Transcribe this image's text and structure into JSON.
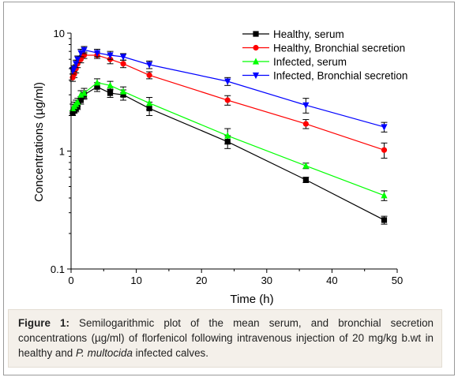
{
  "chart_data": {
    "type": "line",
    "yscale": "log",
    "xlabel": "Time (h)",
    "ylabel": "Concentrations (µg/ml)",
    "xlim": [
      0,
      50
    ],
    "ylim": [
      0.1,
      10
    ],
    "xticks": [
      "0",
      "10",
      "20",
      "30",
      "40",
      "50"
    ],
    "yticks": [
      "0.1",
      "1",
      "10"
    ],
    "legend_position": "top-right",
    "x": [
      0.25,
      0.5,
      0.75,
      1,
      1.5,
      2,
      4,
      6,
      8,
      12,
      24,
      36,
      48
    ],
    "series": [
      {
        "name": "Healthy, serum",
        "color": "#000000",
        "marker": "square",
        "values": [
          2.1,
          2.2,
          2.3,
          2.4,
          2.7,
          3.0,
          3.5,
          3.1,
          3.0,
          2.3,
          1.2,
          0.57,
          0.26
        ],
        "errors": [
          0.1,
          0.1,
          0.15,
          0.15,
          0.2,
          0.25,
          0.3,
          0.25,
          0.3,
          0.3,
          0.15,
          0.03,
          0.02
        ]
      },
      {
        "name": "Healthy, Bronchial secretion",
        "color": "#ff0000",
        "marker": "circle",
        "values": [
          4.2,
          4.5,
          5.0,
          5.5,
          6.0,
          6.5,
          6.5,
          6.0,
          5.5,
          4.4,
          2.7,
          1.7,
          1.02
        ],
        "errors": [
          0.3,
          0.3,
          0.4,
          0.4,
          0.4,
          0.4,
          0.4,
          0.5,
          0.4,
          0.3,
          0.25,
          0.15,
          0.15
        ]
      },
      {
        "name": "Infected, serum",
        "color": "#00ff00",
        "marker": "triangle-up",
        "values": [
          2.3,
          2.4,
          2.5,
          2.6,
          3.0,
          3.1,
          3.8,
          3.6,
          3.2,
          2.55,
          1.35,
          0.75,
          0.42
        ],
        "errors": [
          0.2,
          0.2,
          0.2,
          0.2,
          0.25,
          0.3,
          0.3,
          0.3,
          0.3,
          0.3,
          0.2,
          0.04,
          0.04
        ]
      },
      {
        "name": "Infected, Bronchial secretion",
        "color": "#0000ff",
        "marker": "triangle-down",
        "values": [
          4.8,
          5.0,
          5.5,
          6.0,
          6.8,
          7.2,
          6.8,
          6.5,
          6.3,
          5.4,
          3.9,
          2.45,
          1.6
        ],
        "errors": [
          0.3,
          0.3,
          0.4,
          0.4,
          0.5,
          0.5,
          0.5,
          0.5,
          0.4,
          0.4,
          0.3,
          0.35,
          0.15
        ]
      }
    ]
  },
  "caption": {
    "figure_label": "Figure 1:",
    "text_1": " Semilogarithmic plot of the mean serum, and bronchial secretion concentrations (µg/ml) of florfenicol following intravenous injection of 20 mg/kg b.wt in healthy and ",
    "species": "P. multocida",
    "text_2": " infected calves."
  }
}
